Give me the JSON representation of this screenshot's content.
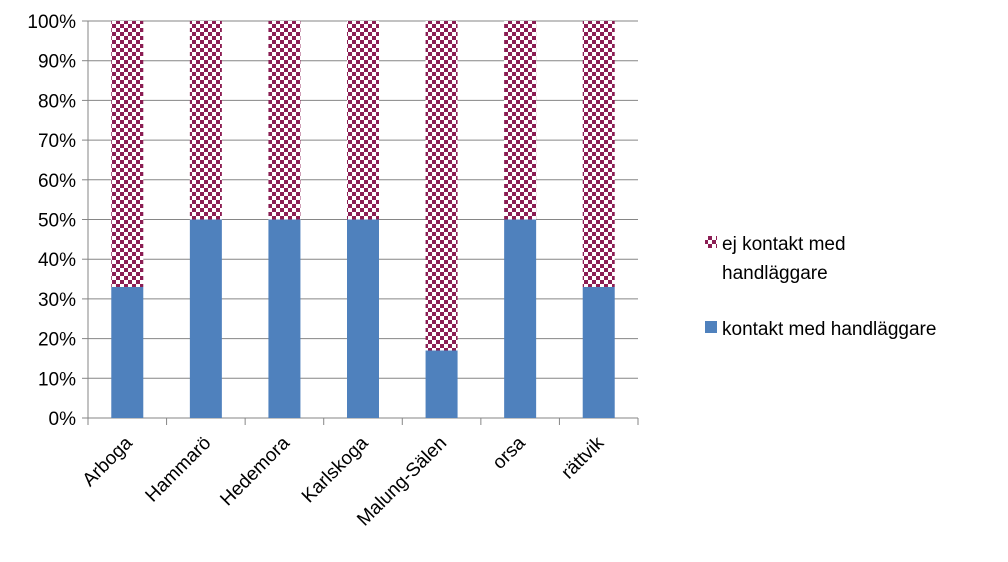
{
  "chart_data": {
    "type": "bar",
    "stacked": true,
    "percent_stacked": true,
    "title": "",
    "xlabel": "",
    "ylabel": "",
    "ylim": [
      0,
      100
    ],
    "y_ticks": [
      "0%",
      "10%",
      "20%",
      "30%",
      "40%",
      "50%",
      "60%",
      "70%",
      "80%",
      "90%",
      "100%"
    ],
    "grid": true,
    "legend_position": "right",
    "categories": [
      "Arboga",
      "Hammarö",
      "Hedemora",
      "Karlskoga",
      "Malung-Sälen",
      "orsa",
      "rättvik"
    ],
    "series": [
      {
        "name": "kontakt med handläggare",
        "values": [
          33,
          50,
          50,
          50,
          17,
          50,
          33
        ],
        "color": "#4F81BD",
        "pattern": "solid"
      },
      {
        "name": "ej kontakt med handläggare",
        "values": [
          67,
          50,
          50,
          50,
          83,
          50,
          67
        ],
        "color": "#8B1E54",
        "pattern": "checkerboard"
      }
    ],
    "legend": {
      "entries": [
        {
          "series": 1,
          "lines": [
            "ej kontakt med",
            "handläggare"
          ]
        },
        {
          "series": 0,
          "lines": [
            "kontakt med handläggare"
          ]
        }
      ]
    }
  }
}
